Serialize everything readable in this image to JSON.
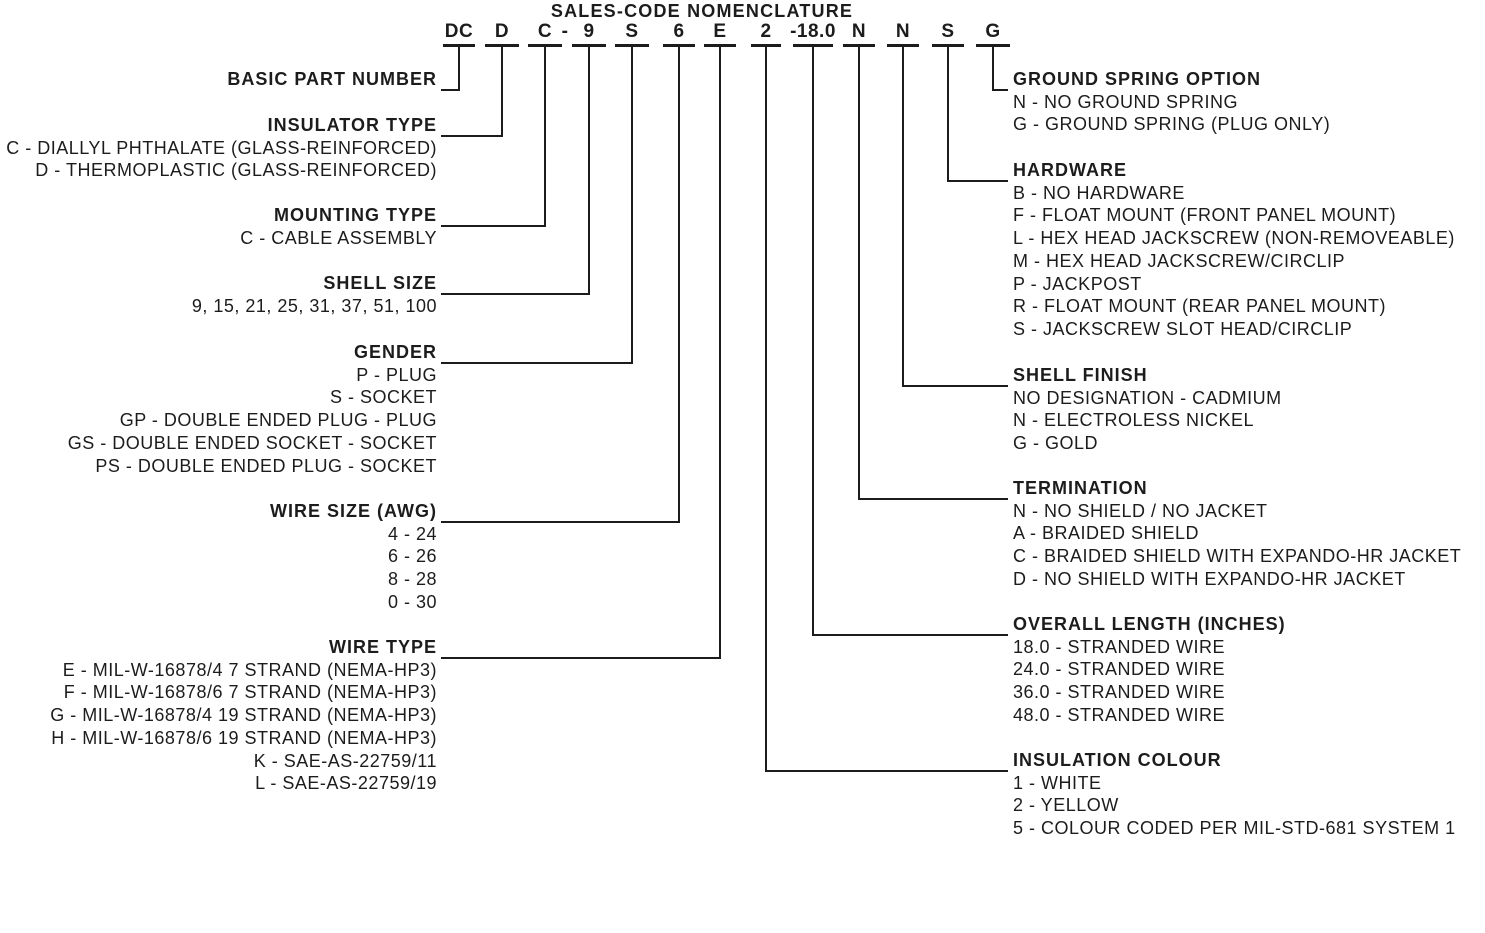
{
  "title": "SALES-CODE NOMENCLATURE",
  "code_tokens": [
    {
      "text": "DC",
      "field": "basic_part_number"
    },
    {
      "text": "D",
      "field": "insulator_type"
    },
    {
      "text": "C",
      "field": "mounting_type"
    },
    {
      "text": "-",
      "separator": true
    },
    {
      "text": "9",
      "field": "shell_size"
    },
    {
      "text": "S",
      "field": "gender"
    },
    {
      "text": "6",
      "field": "wire_size_awg"
    },
    {
      "text": "E",
      "field": "wire_type"
    },
    {
      "text": "2",
      "field": "insulation_colour"
    },
    {
      "text": "-18.0",
      "field": "overall_length_inches"
    },
    {
      "text": "N",
      "field": "termination"
    },
    {
      "text": "N",
      "field": "shell_finish"
    },
    {
      "text": "S",
      "field": "hardware"
    },
    {
      "text": "G",
      "field": "ground_spring_option"
    }
  ],
  "sections": [
    {
      "id": "basic_part_number",
      "side": "left",
      "heading": "BASIC PART NUMBER",
      "items": []
    },
    {
      "id": "insulator_type",
      "side": "left",
      "heading": "INSULATOR TYPE",
      "items": [
        "C - DIALLYL PHTHALATE (GLASS-REINFORCED)",
        "D - THERMOPLASTIC (GLASS-REINFORCED)"
      ]
    },
    {
      "id": "mounting_type",
      "side": "left",
      "heading": "MOUNTING TYPE",
      "items": [
        "C - CABLE ASSEMBLY"
      ]
    },
    {
      "id": "shell_size",
      "side": "left",
      "heading": "SHELL SIZE",
      "items": [
        "9, 15, 21, 25, 31, 37, 51, 100"
      ]
    },
    {
      "id": "gender",
      "side": "left",
      "heading": "GENDER",
      "items": [
        "P - PLUG",
        "S - SOCKET",
        "GP - DOUBLE ENDED PLUG - PLUG",
        "GS - DOUBLE ENDED SOCKET - SOCKET",
        "PS - DOUBLE ENDED PLUG - SOCKET"
      ]
    },
    {
      "id": "wire_size_awg",
      "side": "left",
      "heading": "WIRE SIZE (AWG)",
      "items": [
        "4 - 24",
        "6 - 26",
        "8 - 28",
        "0 - 30"
      ]
    },
    {
      "id": "wire_type",
      "side": "left",
      "heading": "WIRE TYPE",
      "items": [
        "E - MIL-W-16878/4 7 STRAND (NEMA-HP3)",
        "F - MIL-W-16878/6 7 STRAND (NEMA-HP3)",
        "G - MIL-W-16878/4 19 STRAND (NEMA-HP3)",
        "H - MIL-W-16878/6 19 STRAND (NEMA-HP3)",
        "K - SAE-AS-22759/11",
        "L - SAE-AS-22759/19"
      ]
    },
    {
      "id": "ground_spring_option",
      "side": "right",
      "heading": "GROUND SPRING OPTION",
      "items": [
        "N - NO GROUND SPRING",
        "G - GROUND SPRING (PLUG ONLY)"
      ]
    },
    {
      "id": "hardware",
      "side": "right",
      "heading": "HARDWARE",
      "items": [
        "B - NO HARDWARE",
        "F - FLOAT MOUNT (FRONT PANEL MOUNT)",
        "L - HEX HEAD JACKSCREW (NON-REMOVEABLE)",
        "M - HEX HEAD JACKSCREW/CIRCLIP",
        "P - JACKPOST",
        "R - FLOAT MOUNT (REAR PANEL MOUNT)",
        "S - JACKSCREW SLOT HEAD/CIRCLIP"
      ]
    },
    {
      "id": "shell_finish",
      "side": "right",
      "heading": "SHELL FINISH",
      "items": [
        "NO DESIGNATION - CADMIUM",
        "N - ELECTROLESS NICKEL",
        "G - GOLD"
      ]
    },
    {
      "id": "termination",
      "side": "right",
      "heading": "TERMINATION",
      "items": [
        "N - NO SHIELD / NO JACKET",
        "A - BRAIDED SHIELD",
        "C - BRAIDED SHIELD WITH EXPANDO-HR JACKET",
        "D - NO SHIELD WITH EXPANDO-HR JACKET"
      ]
    },
    {
      "id": "overall_length_inches",
      "side": "right",
      "heading": "OVERALL LENGTH (INCHES)",
      "items": [
        "18.0 - STRANDED WIRE",
        "24.0 - STRANDED WIRE",
        "36.0 - STRANDED WIRE",
        "48.0 - STRANDED WIRE"
      ]
    },
    {
      "id": "insulation_colour",
      "side": "right",
      "heading": "INSULATION COLOUR",
      "items": [
        "1 - WHITE",
        "2 - YELLOW",
        "5 - COLOUR CODED PER MIL-STD-681 SYSTEM 1"
      ]
    }
  ],
  "colors": {
    "text": "#1c1c1c",
    "line": "#1c1c1c",
    "background": "#ffffff"
  }
}
